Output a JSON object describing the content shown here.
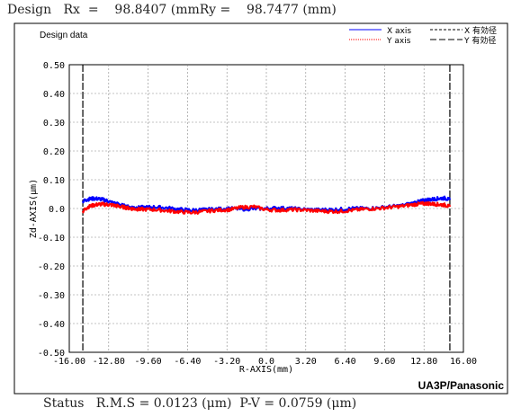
{
  "header": {
    "design_label": "Design",
    "rx_label": "Rx",
    "rx_eq": "=",
    "rx_value": "98.8407",
    "rx_unit": "(mmRy",
    "ry_eq": "=",
    "ry_value": "98.7477",
    "ry_unit": "(mm)"
  },
  "footer": {
    "status_label": "Status",
    "rms_text": "R.M.S = 0.0123 (μm)",
    "pv_text": "P-V = 0.0759 (μm)"
  },
  "chart_data": {
    "type": "line",
    "title": "Design data",
    "xlabel": "R-AXIS(mm)",
    "ylabel": "Zd-AXIS(μm)",
    "xlim": [
      -16.0,
      16.0
    ],
    "ylim": [
      -0.5,
      0.5
    ],
    "x_ticks": [
      "-16.00",
      "-12.80",
      "-9.60",
      "-6.40",
      "-3.20",
      "0.0",
      "3.20",
      "6.40",
      "9.60",
      "12.80",
      "16.00"
    ],
    "y_ticks": [
      "-0.50",
      "-0.40",
      "-0.30",
      "-0.20",
      "-0.10",
      "0.0",
      "0.10",
      "0.20",
      "0.30",
      "0.40",
      "0.50"
    ],
    "grid": true,
    "legend_position": "top-right",
    "watermark": "UA3P/Panasonic",
    "effective_diameter_x": [
      -14.9,
      14.9
    ],
    "series": [
      {
        "name": "X axis",
        "color": "#0000ff",
        "style": "solid",
        "x": [
          -14.9,
          -14.5,
          -14.0,
          -13.5,
          -13.0,
          -12.5,
          -12.0,
          -11.5,
          -11.0,
          -10.5,
          -10.0,
          -9.0,
          -8.0,
          -7.0,
          -6.0,
          -5.0,
          -4.0,
          -3.0,
          -2.0,
          -1.0,
          0.0,
          1.0,
          2.0,
          3.0,
          4.0,
          5.0,
          6.0,
          7.0,
          8.0,
          9.0,
          10.0,
          11.0,
          12.0,
          12.5,
          13.0,
          13.5,
          14.0,
          14.5,
          14.9
        ],
        "y": [
          0.025,
          0.032,
          0.035,
          0.033,
          0.028,
          0.02,
          0.015,
          0.008,
          0.004,
          0.003,
          0.004,
          0.005,
          0.002,
          -0.003,
          -0.006,
          -0.004,
          -0.002,
          0.0,
          -0.002,
          -0.001,
          0.0,
          0.002,
          0.0,
          -0.003,
          -0.005,
          -0.004,
          -0.003,
          0.0,
          0.0,
          0.002,
          0.006,
          0.01,
          0.02,
          0.025,
          0.03,
          0.032,
          0.035,
          0.036,
          0.03
        ]
      },
      {
        "name": "Y axis",
        "color": "#ff0000",
        "style": "dotted",
        "x": [
          -14.9,
          -14.5,
          -14.0,
          -13.5,
          -13.0,
          -12.5,
          -12.0,
          -11.5,
          -11.0,
          -10.5,
          -10.0,
          -9.0,
          -8.0,
          -7.0,
          -6.0,
          -5.0,
          -4.0,
          -3.0,
          -2.0,
          -1.0,
          0.0,
          1.0,
          2.0,
          3.0,
          4.0,
          5.0,
          6.0,
          7.0,
          8.0,
          9.0,
          10.0,
          11.0,
          12.0,
          12.5,
          13.0,
          13.5,
          14.0,
          14.5,
          14.9
        ],
        "y": [
          -0.01,
          0.005,
          0.012,
          0.015,
          0.014,
          0.012,
          0.008,
          0.004,
          0.0,
          -0.002,
          -0.003,
          -0.004,
          -0.008,
          -0.012,
          -0.014,
          -0.01,
          -0.006,
          -0.004,
          0.004,
          0.006,
          -0.004,
          -0.006,
          -0.004,
          -0.005,
          -0.008,
          -0.01,
          -0.01,
          -0.006,
          -0.002,
          0.0,
          0.004,
          0.008,
          0.014,
          0.016,
          0.018,
          0.016,
          0.014,
          0.012,
          0.006
        ]
      }
    ],
    "legend_entries": [
      {
        "label": "X axis",
        "color": "#0000ff",
        "style": "solid"
      },
      {
        "label": "X 有効径",
        "color": "#000000",
        "style": "dashed"
      },
      {
        "label": "Y axis",
        "color": "#ff0000",
        "style": "dotted"
      },
      {
        "label": "Y 有効径",
        "color": "#000000",
        "style": "longdash"
      }
    ]
  }
}
